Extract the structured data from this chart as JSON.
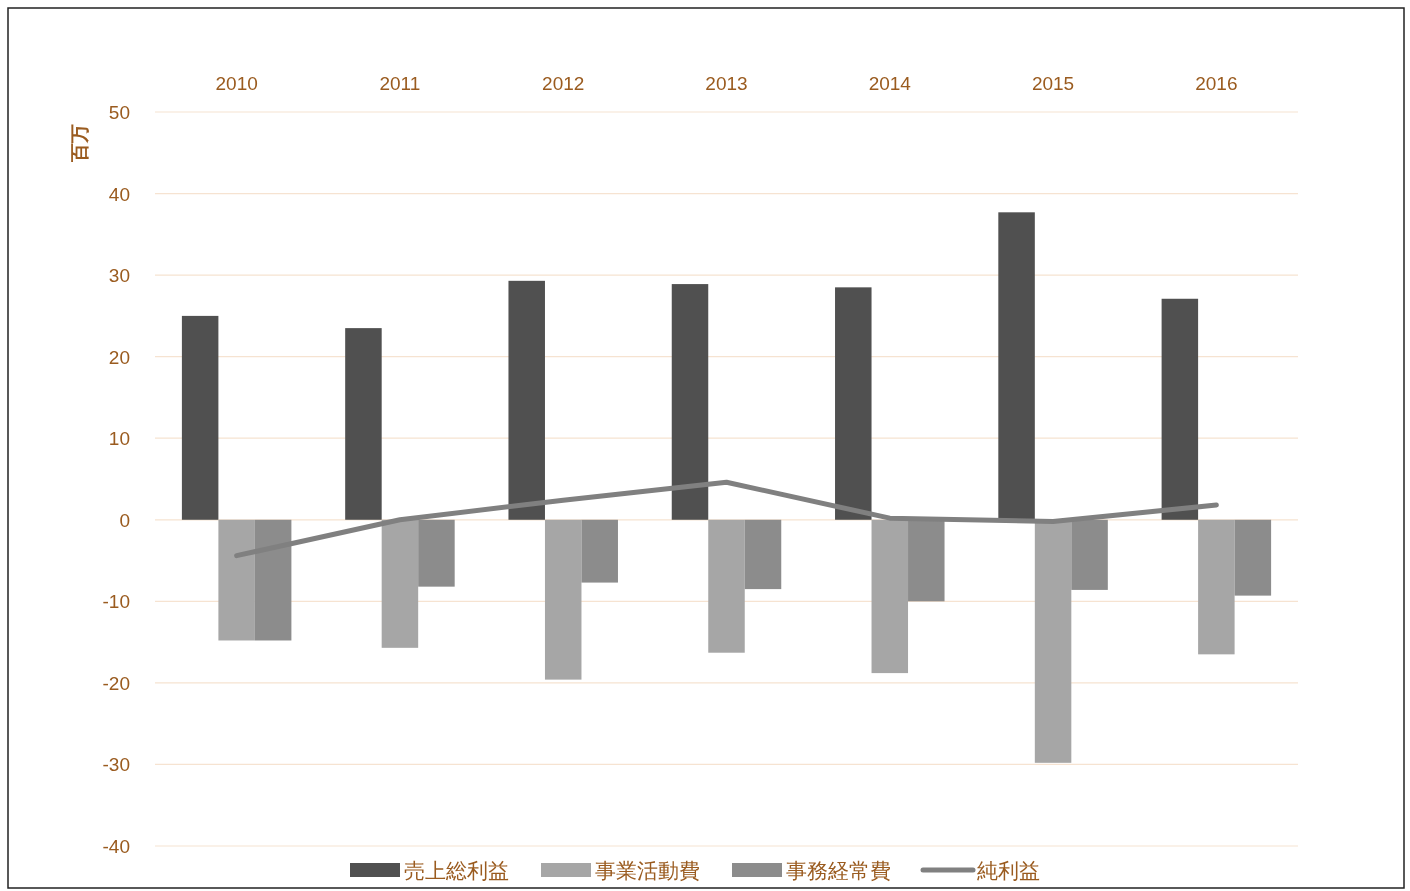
{
  "chart_data": {
    "type": "bar",
    "categories": [
      "2010",
      "2011",
      "2012",
      "2013",
      "2014",
      "2015",
      "2016"
    ],
    "ylabel": "百万",
    "series": [
      {
        "name": "売上総利益",
        "color": "#505050",
        "values": [
          25,
          23.5,
          29.3,
          28.9,
          28.5,
          37.7,
          27.1
        ]
      },
      {
        "name": "事業活動費",
        "color": "#a6a6a6",
        "values": [
          -14.8,
          -15.7,
          -19.6,
          -16.3,
          -18.8,
          -29.8,
          -16.5
        ]
      },
      {
        "name": "事務経常費",
        "color": "#8c8c8c",
        "values": [
          -14.8,
          -8.2,
          -7.7,
          -8.5,
          -10.0,
          -8.6,
          -9.3
        ]
      },
      {
        "name": "純利益",
        "type": "line",
        "color": "#808080",
        "values": [
          -4.4,
          0,
          2.4,
          4.6,
          0.2,
          -0.2,
          1.8
        ]
      }
    ],
    "ylim": [
      -40,
      50
    ],
    "yticks": [
      -40,
      -30,
      -20,
      -10,
      0,
      10,
      20,
      30,
      40,
      50
    ],
    "grid": "y",
    "legend": "bottom",
    "marker": "none",
    "line_style": "solid"
  }
}
